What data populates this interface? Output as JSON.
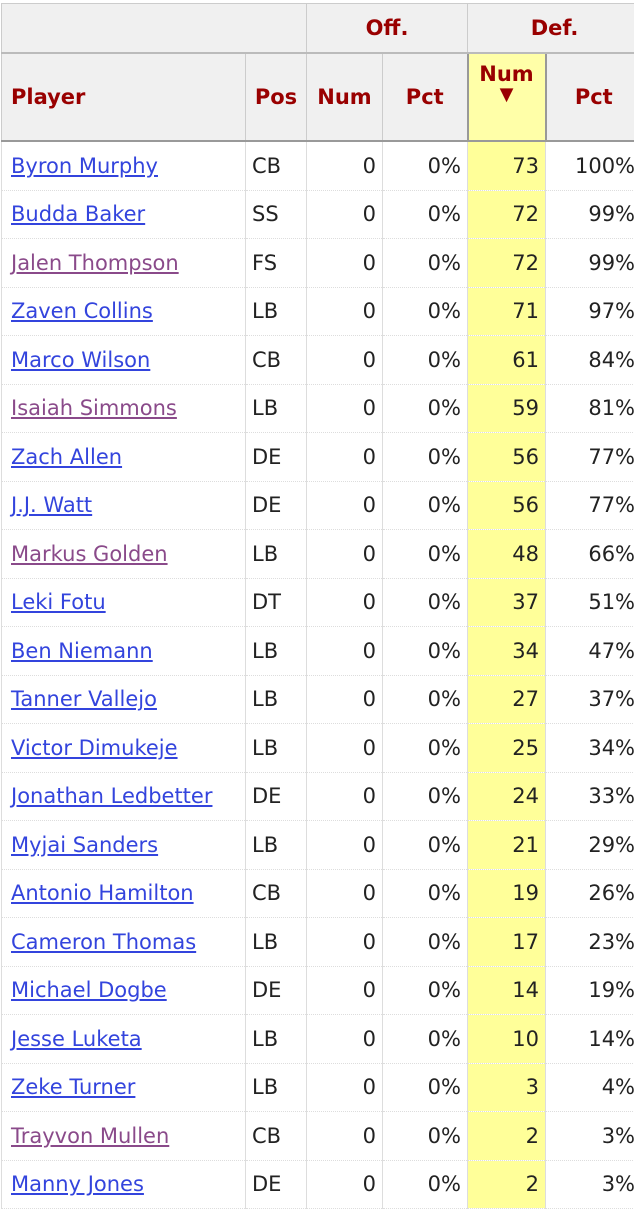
{
  "header": {
    "groups": [
      "",
      "Off.",
      "Def."
    ],
    "columns": [
      "Player",
      "Pos",
      "Num",
      "Pct",
      "Num",
      "Pct"
    ],
    "sort_indicator": "▼",
    "sorted_column": "Def. Num"
  },
  "colors": {
    "link": "#3344dd",
    "visited_link": "#8a4a8a",
    "header_text": "#990000",
    "sorted_bg": "#ffff99"
  },
  "rows": [
    {
      "player": "Byron Murphy",
      "pos": "CB",
      "off_num": "0",
      "off_pct": "0%",
      "def_num": "73",
      "def_pct": "100%",
      "visited": false
    },
    {
      "player": "Budda Baker",
      "pos": "SS",
      "off_num": "0",
      "off_pct": "0%",
      "def_num": "72",
      "def_pct": "99%",
      "visited": false
    },
    {
      "player": "Jalen Thompson",
      "pos": "FS",
      "off_num": "0",
      "off_pct": "0%",
      "def_num": "72",
      "def_pct": "99%",
      "visited": true
    },
    {
      "player": "Zaven Collins",
      "pos": "LB",
      "off_num": "0",
      "off_pct": "0%",
      "def_num": "71",
      "def_pct": "97%",
      "visited": false
    },
    {
      "player": "Marco Wilson",
      "pos": "CB",
      "off_num": "0",
      "off_pct": "0%",
      "def_num": "61",
      "def_pct": "84%",
      "visited": false
    },
    {
      "player": "Isaiah Simmons",
      "pos": "LB",
      "off_num": "0",
      "off_pct": "0%",
      "def_num": "59",
      "def_pct": "81%",
      "visited": true
    },
    {
      "player": "Zach Allen",
      "pos": "DE",
      "off_num": "0",
      "off_pct": "0%",
      "def_num": "56",
      "def_pct": "77%",
      "visited": false
    },
    {
      "player": "J.J. Watt",
      "pos": "DE",
      "off_num": "0",
      "off_pct": "0%",
      "def_num": "56",
      "def_pct": "77%",
      "visited": false
    },
    {
      "player": "Markus Golden",
      "pos": "LB",
      "off_num": "0",
      "off_pct": "0%",
      "def_num": "48",
      "def_pct": "66%",
      "visited": true
    },
    {
      "player": "Leki Fotu",
      "pos": "DT",
      "off_num": "0",
      "off_pct": "0%",
      "def_num": "37",
      "def_pct": "51%",
      "visited": false
    },
    {
      "player": "Ben Niemann",
      "pos": "LB",
      "off_num": "0",
      "off_pct": "0%",
      "def_num": "34",
      "def_pct": "47%",
      "visited": false
    },
    {
      "player": "Tanner Vallejo",
      "pos": "LB",
      "off_num": "0",
      "off_pct": "0%",
      "def_num": "27",
      "def_pct": "37%",
      "visited": false
    },
    {
      "player": "Victor Dimukeje",
      "pos": "LB",
      "off_num": "0",
      "off_pct": "0%",
      "def_num": "25",
      "def_pct": "34%",
      "visited": false
    },
    {
      "player": "Jonathan Ledbetter",
      "pos": "DE",
      "off_num": "0",
      "off_pct": "0%",
      "def_num": "24",
      "def_pct": "33%",
      "visited": false
    },
    {
      "player": "Myjai Sanders",
      "pos": "LB",
      "off_num": "0",
      "off_pct": "0%",
      "def_num": "21",
      "def_pct": "29%",
      "visited": false
    },
    {
      "player": "Antonio Hamilton",
      "pos": "CB",
      "off_num": "0",
      "off_pct": "0%",
      "def_num": "19",
      "def_pct": "26%",
      "visited": false
    },
    {
      "player": "Cameron Thomas",
      "pos": "LB",
      "off_num": "0",
      "off_pct": "0%",
      "def_num": "17",
      "def_pct": "23%",
      "visited": false
    },
    {
      "player": "Michael Dogbe",
      "pos": "DE",
      "off_num": "0",
      "off_pct": "0%",
      "def_num": "14",
      "def_pct": "19%",
      "visited": false
    },
    {
      "player": "Jesse Luketa",
      "pos": "LB",
      "off_num": "0",
      "off_pct": "0%",
      "def_num": "10",
      "def_pct": "14%",
      "visited": false
    },
    {
      "player": "Zeke Turner",
      "pos": "LB",
      "off_num": "0",
      "off_pct": "0%",
      "def_num": "3",
      "def_pct": "4%",
      "visited": false
    },
    {
      "player": "Trayvon Mullen",
      "pos": "CB",
      "off_num": "0",
      "off_pct": "0%",
      "def_num": "2",
      "def_pct": "3%",
      "visited": true
    },
    {
      "player": "Manny Jones",
      "pos": "DE",
      "off_num": "0",
      "off_pct": "0%",
      "def_num": "2",
      "def_pct": "3%",
      "visited": false
    }
  ]
}
